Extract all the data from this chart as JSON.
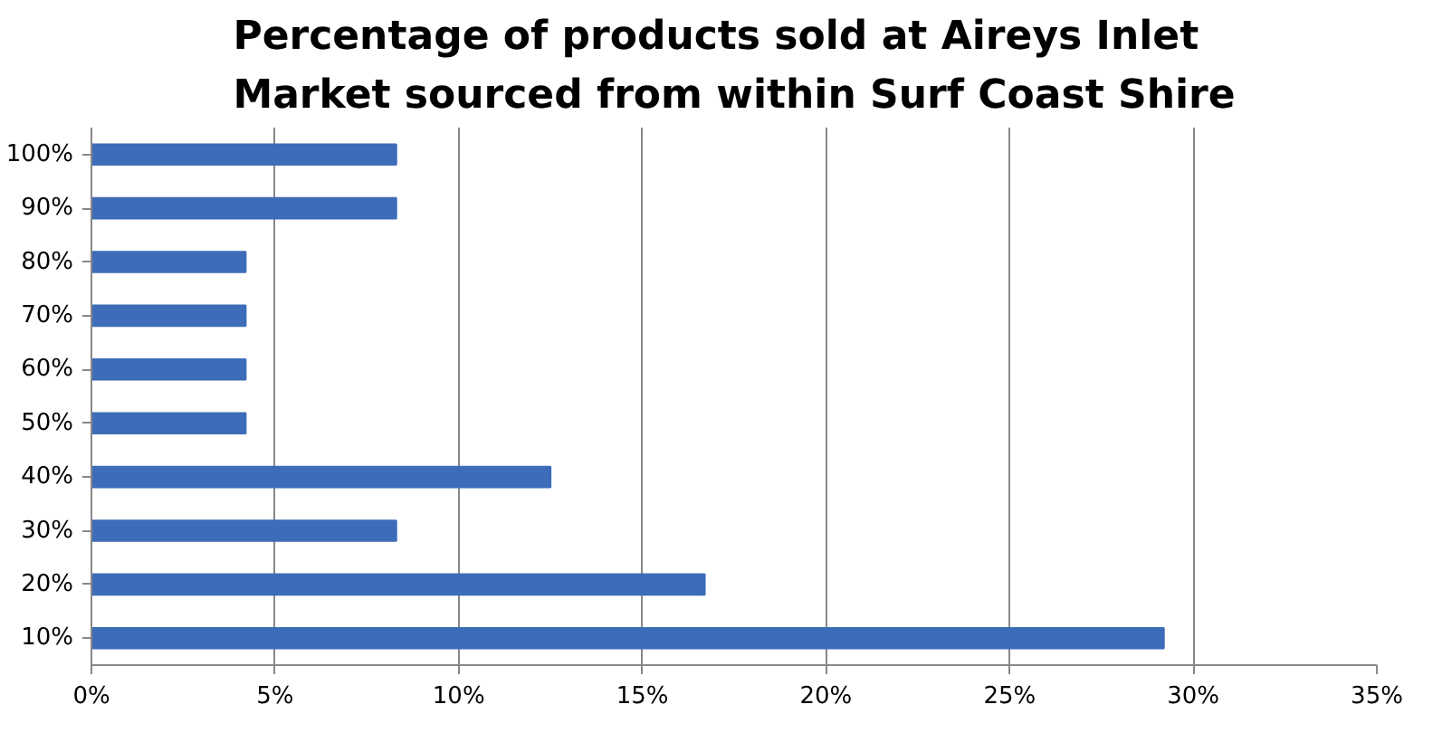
{
  "chart_data": {
    "type": "bar",
    "orientation": "horizontal",
    "title": "Percentage of products sold at Aireys Inlet Market sourced from within Surf Coast Shire",
    "categories": [
      "100%",
      "90%",
      "80%",
      "70%",
      "60%",
      "50%",
      "40%",
      "30%",
      "20%",
      "10%"
    ],
    "values": [
      8.3,
      8.3,
      4.2,
      4.2,
      4.2,
      4.2,
      12.5,
      8.3,
      16.7,
      29.2
    ],
    "color": "#3d6cb9",
    "xlim": [
      0,
      35
    ],
    "xticks": [
      {
        "value": 0,
        "label": "0%"
      },
      {
        "value": 5,
        "label": "5%"
      },
      {
        "value": 10,
        "label": "10%"
      },
      {
        "value": 15,
        "label": "15%"
      },
      {
        "value": 20,
        "label": "20%"
      },
      {
        "value": 25,
        "label": "25%"
      },
      {
        "value": 30,
        "label": "30%"
      },
      {
        "value": 35,
        "label": "35%"
      }
    ],
    "grid": "x"
  }
}
